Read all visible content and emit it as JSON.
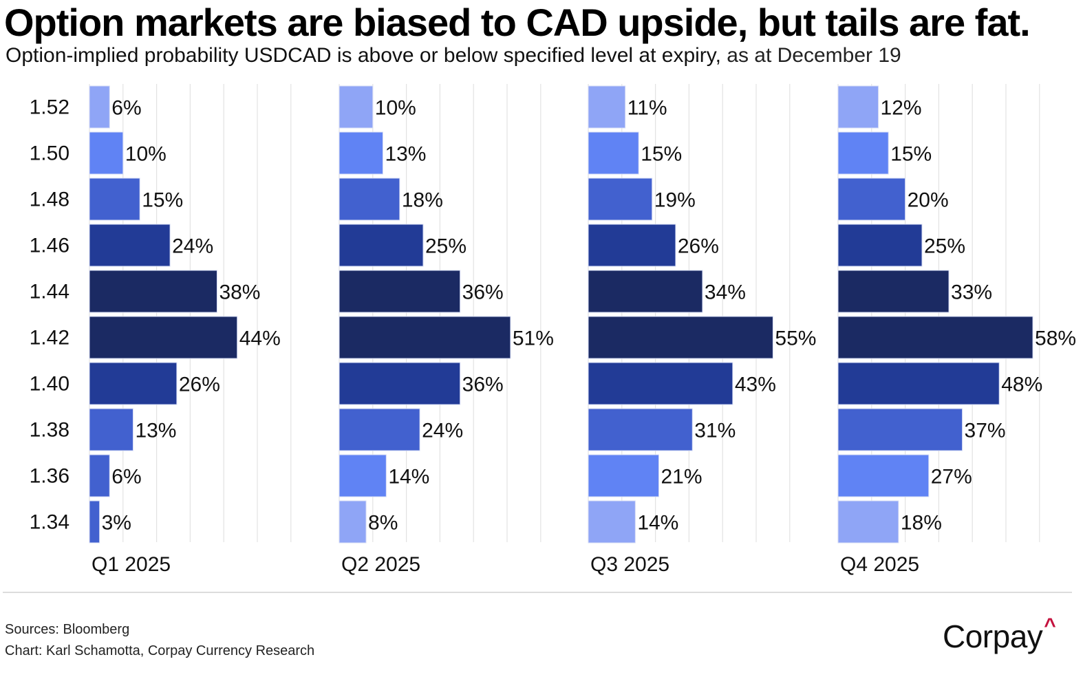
{
  "header": {
    "title": "Option markets are biased to CAD upside, but tails are fat.",
    "subtitle_main": "Option-implied probability USDCAD is above or below specified level at expiry,",
    "subtitle_date": " as at December 19"
  },
  "footer": {
    "sources": "Sources: Bloomberg",
    "credit": "Chart: Karl Schamotta, Corpay Currency Research",
    "logo_text": "Corpay",
    "logo_mark": "^"
  },
  "colors": {
    "lightest": "#8fa5f6",
    "light": "#6083f4",
    "medium": "#4261cf",
    "dark": "#223b96",
    "darkest": "#1b2a63",
    "gridline": "#e2e2e2",
    "logo_accent": "#c4123e"
  },
  "chart_data": {
    "type": "bar",
    "orientation": "horizontal",
    "title": "Option markets are biased to CAD upside, but tails are fat.",
    "subtitle": "Option-implied probability USDCAD is above or below specified level at expiry, as at December 19",
    "categories": [
      "1.52",
      "1.50",
      "1.48",
      "1.46",
      "1.44",
      "1.42",
      "1.40",
      "1.38",
      "1.36",
      "1.34"
    ],
    "xlim": [
      0,
      60
    ],
    "grid": true,
    "grid_step": 10,
    "value_suffix": "%",
    "panels": [
      {
        "name": "Q1 2025",
        "values": [
          6,
          10,
          15,
          24,
          38,
          44,
          26,
          13,
          6,
          3
        ],
        "color_keys": [
          "lightest",
          "light",
          "medium",
          "dark",
          "darkest",
          "darkest",
          "dark",
          "medium",
          "medium",
          "medium"
        ]
      },
      {
        "name": "Q2 2025",
        "values": [
          10,
          13,
          18,
          25,
          36,
          51,
          36,
          24,
          14,
          8
        ],
        "color_keys": [
          "lightest",
          "light",
          "medium",
          "dark",
          "darkest",
          "darkest",
          "dark",
          "medium",
          "light",
          "lightest"
        ]
      },
      {
        "name": "Q3 2025",
        "values": [
          11,
          15,
          19,
          26,
          34,
          55,
          43,
          31,
          21,
          14
        ],
        "color_keys": [
          "lightest",
          "light",
          "medium",
          "dark",
          "darkest",
          "darkest",
          "dark",
          "medium",
          "light",
          "lightest"
        ]
      },
      {
        "name": "Q4 2025",
        "values": [
          12,
          15,
          20,
          25,
          33,
          58,
          48,
          37,
          27,
          18
        ],
        "color_keys": [
          "lightest",
          "light",
          "medium",
          "dark",
          "darkest",
          "darkest",
          "dark",
          "medium",
          "light",
          "lightest"
        ]
      }
    ]
  }
}
